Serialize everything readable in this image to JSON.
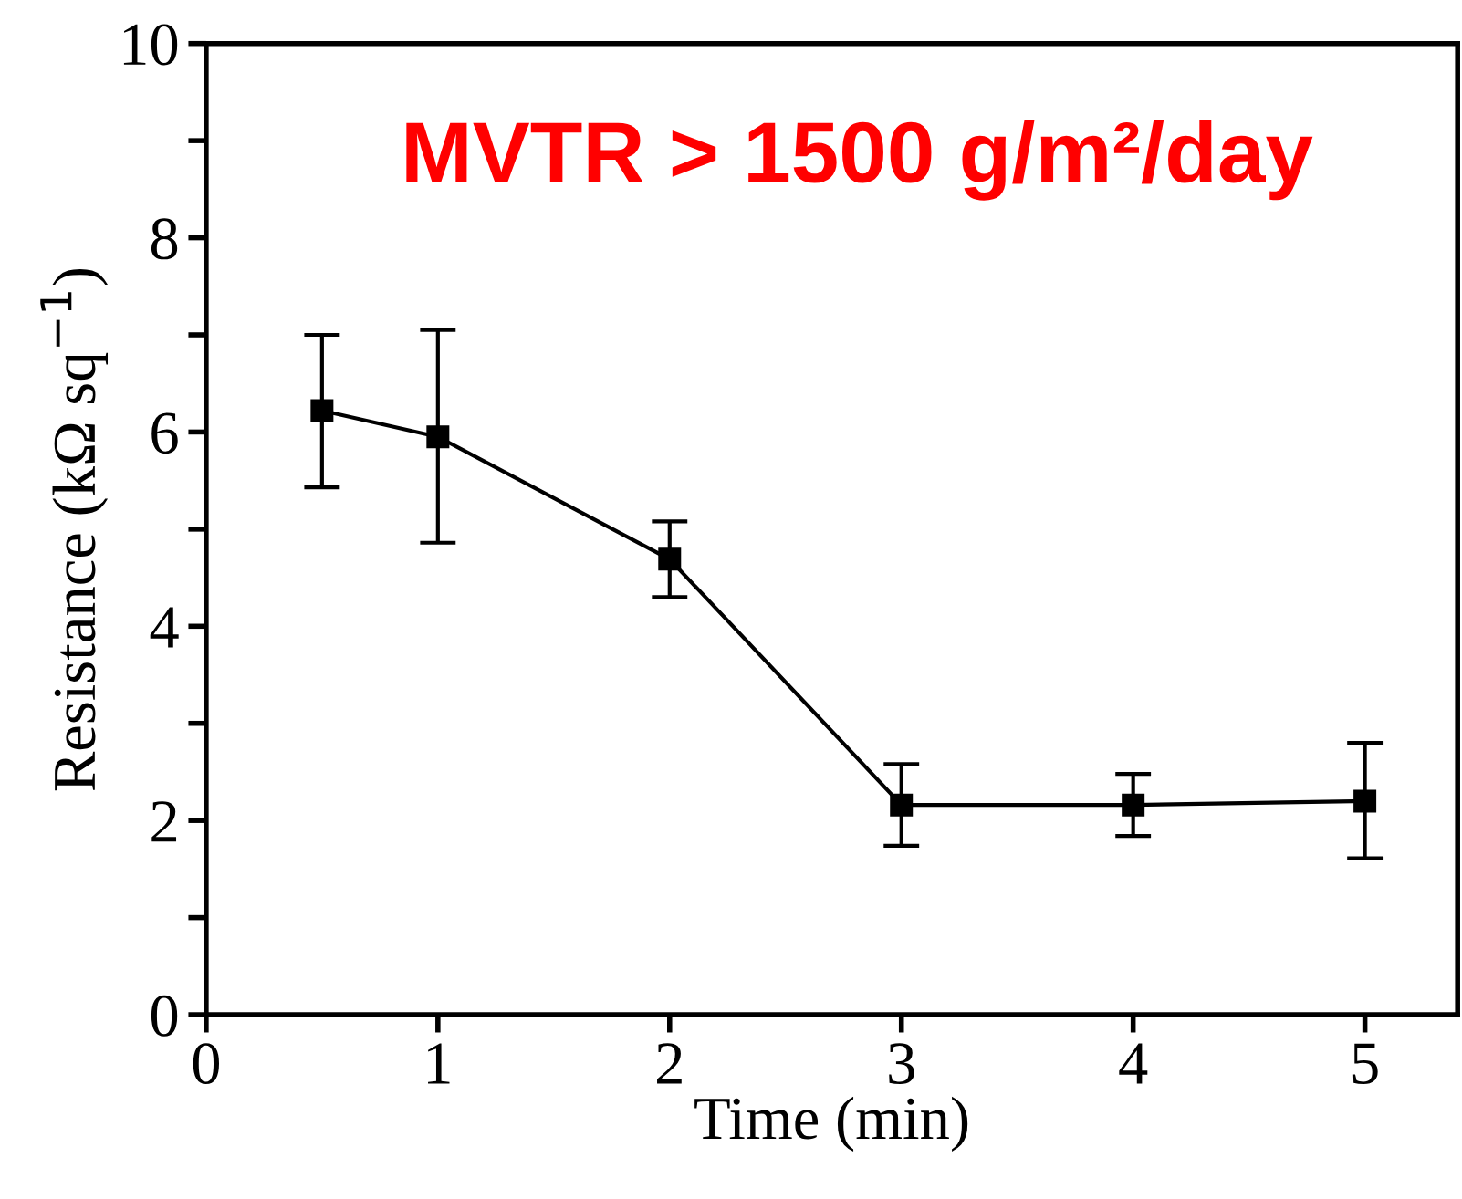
{
  "chart_data": {
    "type": "line",
    "xlabel": "Time (min)",
    "ylabel": "Resistance (kΩ sq$^{−1}$)",
    "annotations": [
      "MVTR > 1500 g/m²/day"
    ],
    "x": [
      0.5,
      1,
      2,
      3,
      4,
      5
    ],
    "series": [
      {
        "color": "#000000",
        "values": [
          6.22,
          5.95,
          4.69,
          2.16,
          2.16,
          2.2
        ],
        "errors": [
          [
            5.43,
            7.0
          ],
          [
            4.86,
            7.05
          ],
          [
            4.3,
            5.08
          ],
          [
            1.74,
            2.58
          ],
          [
            1.84,
            2.48
          ],
          [
            1.61,
            2.8
          ]
        ]
      }
    ],
    "xlim": [
      0,
      5.4
    ],
    "xticks": [
      0,
      1,
      2,
      3,
      4,
      5
    ],
    "ylim": [
      0,
      10
    ],
    "yticks": [
      0,
      {
        "value": 1,
        "label": null
      },
      2,
      {
        "value": 3,
        "label": null
      },
      4,
      {
        "value": 5,
        "label": null
      },
      6,
      {
        "value": 7,
        "label": null
      },
      8,
      {
        "value": 9,
        "label": null
      },
      10
    ],
    "marker": "square",
    "line_style": "solid",
    "grid": false,
    "legend": false
  }
}
